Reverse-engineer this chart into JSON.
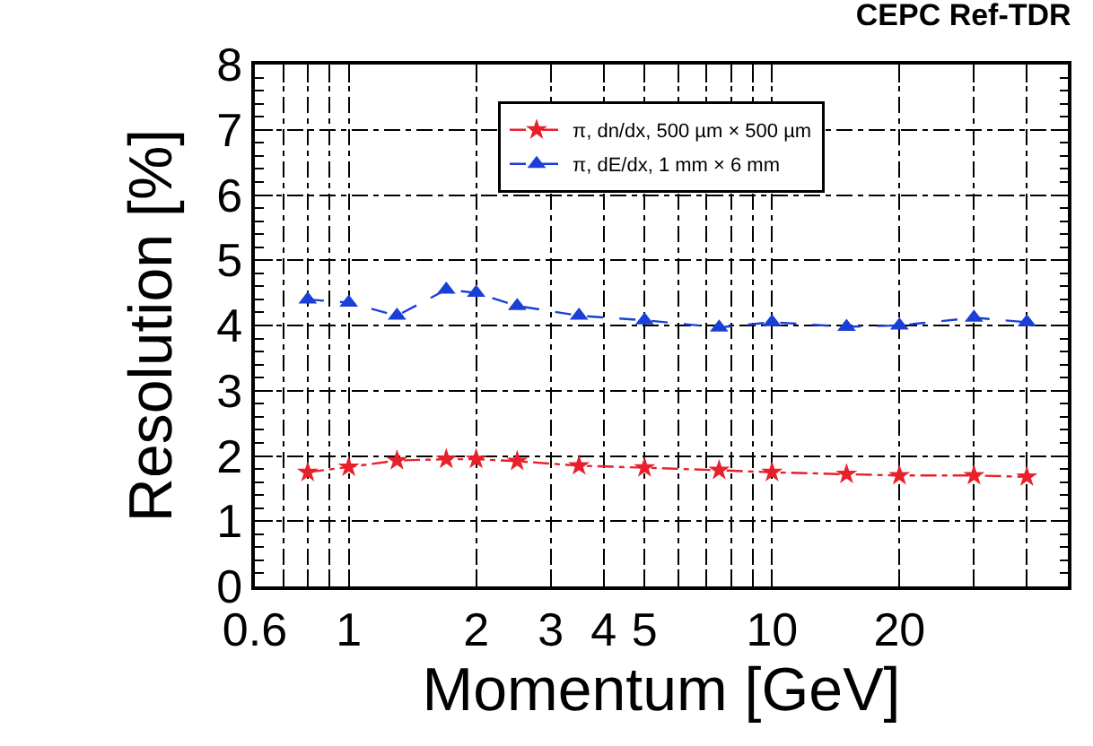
{
  "chart_data": {
    "type": "line",
    "title": "CEPC Ref-TDR",
    "xlabel": "Momentum [GeV]",
    "ylabel": "Resolution [%]",
    "log": "x",
    "grid": true,
    "legend": "top",
    "xlim": [
      0.6,
      50
    ],
    "ylim": [
      0,
      8
    ],
    "xticks": [
      0.6,
      {
        "value": 0.7,
        "label": null
      },
      {
        "value": 0.8,
        "label": null
      },
      {
        "value": 0.9,
        "label": null
      },
      1,
      2,
      3,
      4,
      5,
      {
        "value": 6,
        "label": null
      },
      {
        "value": 7,
        "label": null
      },
      {
        "value": 8,
        "label": null
      },
      {
        "value": 9,
        "label": null
      },
      10,
      20,
      {
        "value": 30,
        "label": null
      },
      {
        "value": 40,
        "label": null
      },
      {
        "value": 50,
        "label": null
      }
    ],
    "yticks": [
      0,
      1,
      2,
      3,
      4,
      5,
      6,
      7,
      8
    ],
    "x": [
      0.8,
      1.0,
      1.3,
      1.7,
      2.0,
      2.5,
      3.5,
      5.0,
      7.5,
      10,
      15,
      20,
      30,
      40
    ],
    "series": [
      {
        "name": "π, dn/dx, 500 µm × 500 µm",
        "color": "#e8202a",
        "marker": "star",
        "line_style": "dotted",
        "values": [
          1.75,
          1.83,
          1.93,
          1.95,
          1.95,
          1.92,
          1.85,
          1.82,
          1.78,
          1.75,
          1.72,
          1.7,
          1.7,
          1.68
        ]
      },
      {
        "name": "π, dE/dx, 1 mm × 6 mm",
        "color": "#1a3fd6",
        "marker": "triangle",
        "line_style": "dashed",
        "values": [
          4.4,
          4.35,
          4.15,
          4.55,
          4.5,
          4.3,
          4.15,
          4.08,
          3.97,
          4.05,
          3.98,
          4.0,
          4.12,
          4.05
        ]
      }
    ]
  }
}
